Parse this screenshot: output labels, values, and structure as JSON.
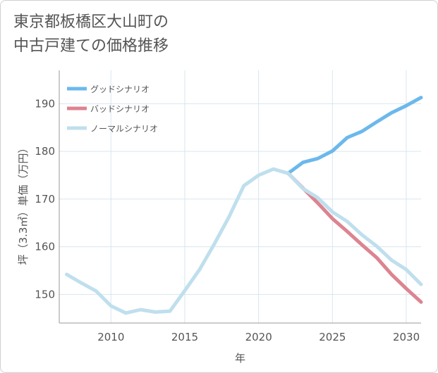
{
  "title_lines": [
    "東京都板橋区大山町の",
    "中古戸建ての価格推移"
  ],
  "chart_data": {
    "type": "line",
    "title": "東京都板橋区大山町の中古戸建ての価格推移",
    "xlabel": "年",
    "ylabel": "坪（3.3㎡）単価（万円）",
    "xlim": [
      2006.5,
      2031
    ],
    "ylim": [
      144,
      197
    ],
    "xticks": [
      2010,
      2015,
      2020,
      2025,
      2030
    ],
    "yticks": [
      150,
      160,
      170,
      180,
      190
    ],
    "grid": true,
    "legend_position": "top-left",
    "series": [
      {
        "name": "グッドシナリオ",
        "color": "#6cb8ec",
        "x": [
          2022,
          2023,
          2024,
          2025,
          2026,
          2027,
          2028,
          2029,
          2030,
          2031
        ],
        "values": [
          175.4,
          177.7,
          178.5,
          180.1,
          182.9,
          184.2,
          186.2,
          188.1,
          189.6,
          191.3
        ]
      },
      {
        "name": "バッドシナリオ",
        "color": "#dc8490",
        "x": [
          2022,
          2023,
          2024,
          2025,
          2026,
          2027,
          2028,
          2029,
          2030,
          2031
        ],
        "values": [
          175.4,
          172.3,
          169.2,
          165.9,
          163.2,
          160.4,
          157.7,
          154.2,
          151.2,
          148.4
        ]
      },
      {
        "name": "ノーマルシナリオ",
        "color": "#bfdfed",
        "x": [
          2007,
          2008,
          2009,
          2010,
          2011,
          2012,
          2013,
          2014,
          2015,
          2016,
          2017,
          2018,
          2019,
          2020,
          2021,
          2022,
          2023,
          2024,
          2025,
          2026,
          2027,
          2028,
          2029,
          2030,
          2031
        ],
        "values": [
          154.2,
          152.4,
          150.7,
          147.6,
          146.1,
          146.8,
          146.3,
          146.5,
          150.8,
          155.2,
          160.6,
          166.3,
          172.8,
          175.0,
          176.3,
          175.4,
          172.2,
          170.3,
          167.3,
          165.3,
          162.5,
          160.1,
          157.2,
          155.2,
          152.1
        ]
      }
    ]
  }
}
